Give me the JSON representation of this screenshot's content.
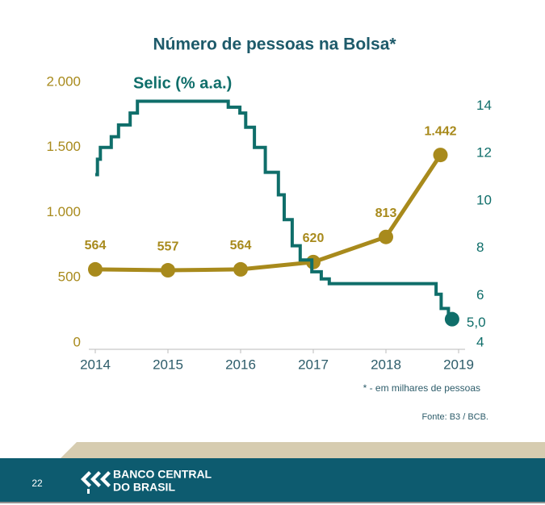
{
  "chart_data": {
    "type": "line",
    "title": "Número de pessoas na Bolsa*",
    "xlim": [
      2014,
      2019
    ],
    "xticks": [
      2014,
      2015,
      2016,
      2017,
      2018,
      2019
    ],
    "ylim": [
      0,
      2000
    ],
    "yticks": [
      0,
      500,
      {
        "value": 1000,
        "label": "1.000"
      },
      {
        "value": 1500,
        "label": "1.500"
      },
      {
        "value": 2000,
        "label": "2.000"
      }
    ],
    "y2lim": [
      4,
      15
    ],
    "y2ticks": [
      4,
      6,
      8,
      10,
      12,
      14
    ],
    "series": [
      {
        "color": "#a88a1c",
        "x": [
          2014,
          2015,
          2016,
          2017,
          2018,
          2018.75
        ],
        "values": [
          564,
          557,
          564,
          620,
          813,
          1442
        ],
        "value_labels": [
          "564",
          "557",
          "564",
          "620",
          "813",
          "1.442"
        ]
      },
      {
        "name": "Selic (% a.a.)",
        "color": "#0f6e6a",
        "axis": "y2",
        "step": true,
        "x": [
          2014.0,
          2014.03,
          2014.07,
          2014.22,
          2014.32,
          2014.48,
          2014.58,
          2015.83,
          2015.99,
          2016.07,
          2016.19,
          2016.34,
          2016.52,
          2016.6,
          2016.71,
          2016.82,
          2016.98,
          2017.11,
          2017.22,
          2018.69,
          2018.76,
          2018.86,
          2018.91
        ],
        "values": [
          11.1,
          11.75,
          12.25,
          12.7,
          13.2,
          13.7,
          14.2,
          13.95,
          13.7,
          13.1,
          12.25,
          11.2,
          10.25,
          9.2,
          8.1,
          7.5,
          7.0,
          6.7,
          6.5,
          6.05,
          5.45,
          5.0,
          5.0
        ],
        "value_labels": [
          null,
          null,
          null,
          null,
          null,
          null,
          null,
          null,
          null,
          null,
          null,
          null,
          null,
          null,
          null,
          null,
          null,
          null,
          null,
          null,
          null,
          null,
          "5,0"
        ]
      }
    ]
  },
  "footnote": "* - em milhares de pessoas",
  "source": "Fonte: B3 / BCB.",
  "page_number": "22",
  "logo": [
    "BANCO CENTRAL",
    "DO BRASIL"
  ]
}
